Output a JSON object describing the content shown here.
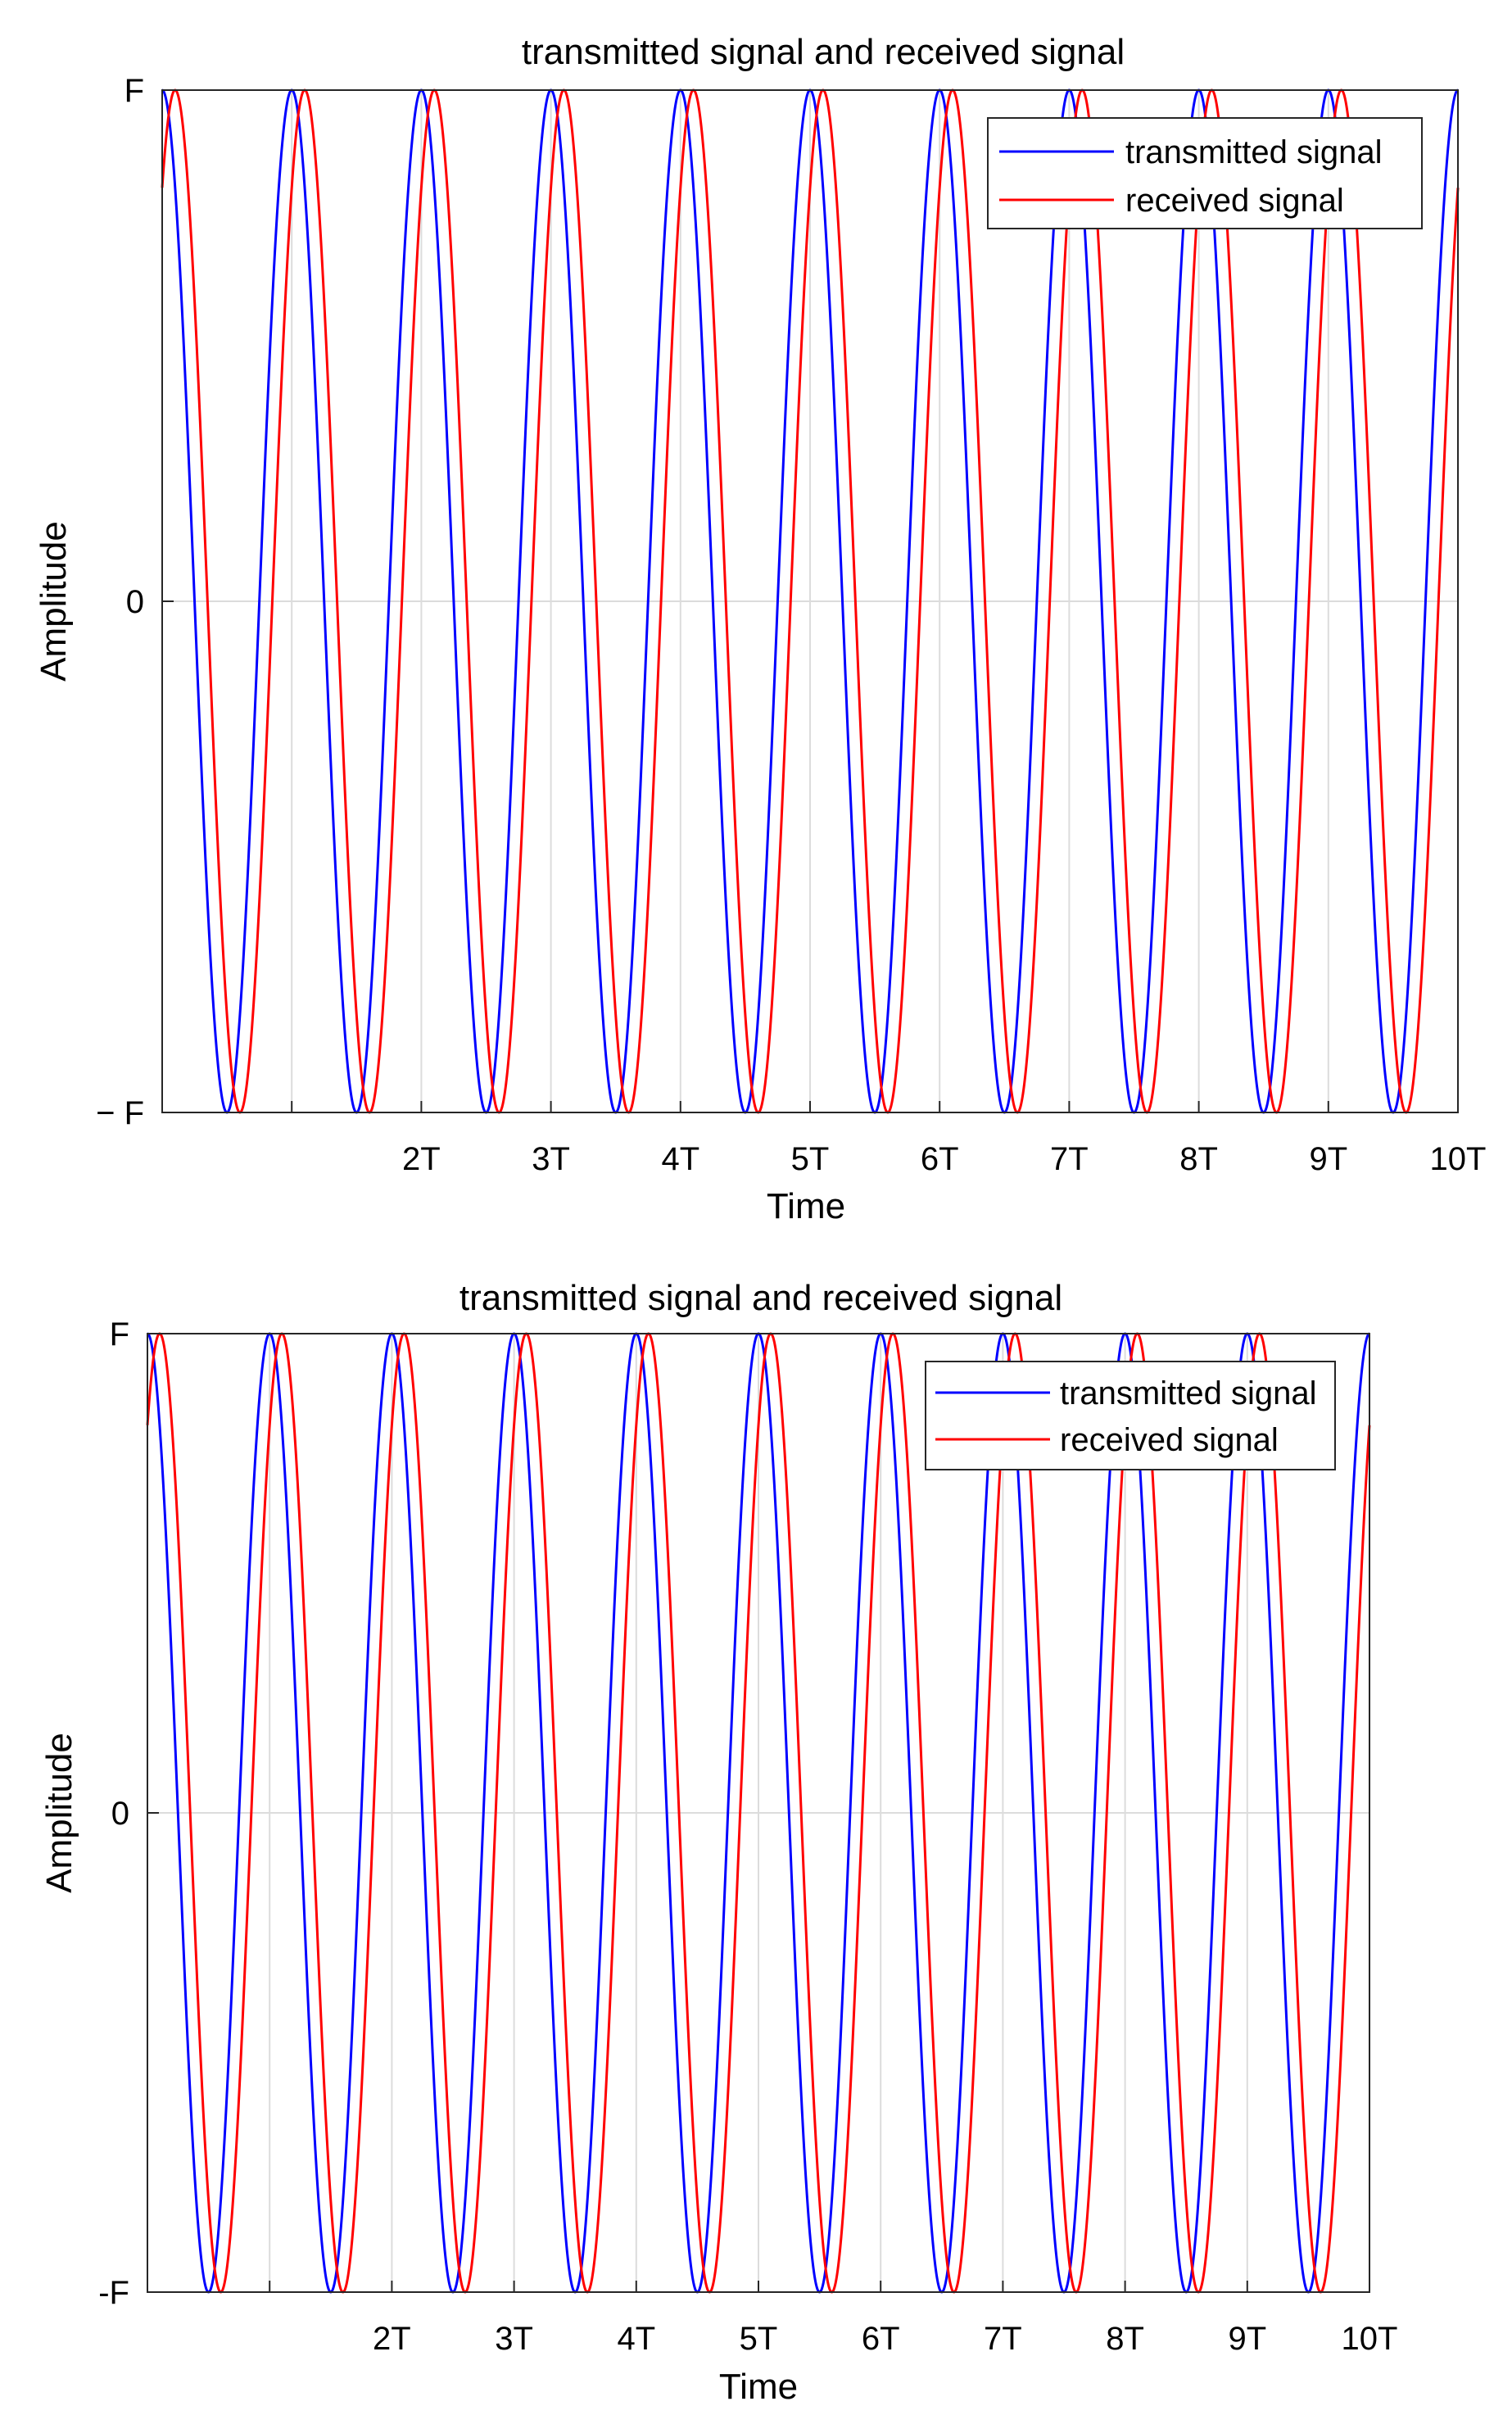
{
  "figure": {
    "panel_count": 2,
    "colors": {
      "transmitted": "#0000ff",
      "received": "#ff0000",
      "grid": "#dcdcdc",
      "axis": "#262626"
    }
  },
  "chart_data": [
    {
      "type": "line",
      "title": "transmitted signal and received signal",
      "xlabel": "Time",
      "ylabel": "Amplitude",
      "xlim": [
        0,
        10
      ],
      "ylim": [
        -1,
        1
      ],
      "grid": true,
      "legend_position": "top-right",
      "xticks": [
        1,
        2,
        3,
        4,
        5,
        6,
        7,
        8,
        9,
        10
      ],
      "xtick_labels": [
        "",
        "2T",
        "3T",
        "4T",
        "5T",
        "6T",
        "7T",
        "8T",
        "9T",
        "10T"
      ],
      "yticks": [
        -1,
        0,
        1
      ],
      "ytick_labels": [
        "− F",
        "0",
        "F"
      ],
      "series": [
        {
          "name": "transmitted signal",
          "function": "cos",
          "amplitude": 1,
          "period": 1,
          "delay": 0,
          "color": "#0000ff"
        },
        {
          "name": "received signal",
          "function": "cos",
          "amplitude": 1,
          "period": 1,
          "delay": 0.1,
          "color": "#ff0000"
        }
      ]
    },
    {
      "type": "line",
      "title": "transmitted signal and received signal",
      "xlabel": "Time",
      "ylabel": "Amplitude",
      "xlim": [
        0,
        10
      ],
      "ylim": [
        -1,
        1
      ],
      "grid": true,
      "legend_position": "top-right",
      "xticks": [
        1,
        2,
        3,
        4,
        5,
        6,
        7,
        8,
        9,
        10
      ],
      "xtick_labels": [
        "",
        "2T",
        "3T",
        "4T",
        "5T",
        "6T",
        "7T",
        "8T",
        "9T",
        "10T"
      ],
      "yticks": [
        -1,
        0,
        1
      ],
      "ytick_labels": [
        "-F",
        "0",
        "F"
      ],
      "series": [
        {
          "name": "transmitted signal",
          "function": "cos",
          "amplitude": 1,
          "period": 1,
          "delay": 0,
          "color": "#0000ff"
        },
        {
          "name": "received signal",
          "function": "cos",
          "amplitude": 1,
          "period": 1,
          "delay": 0.1,
          "color": "#ff0000"
        }
      ]
    }
  ]
}
